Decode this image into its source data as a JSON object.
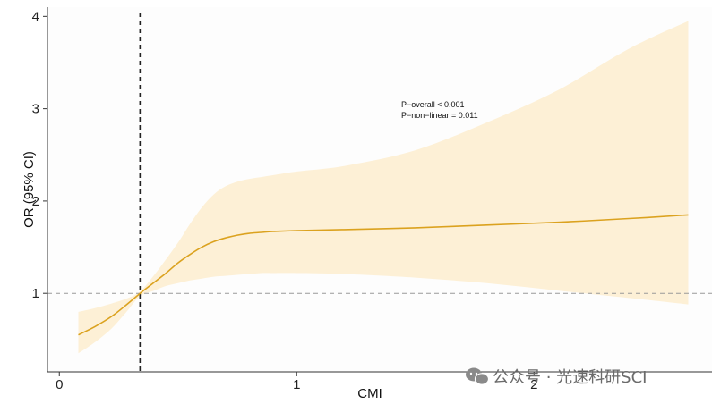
{
  "chart_data": {
    "type": "line",
    "title": "",
    "xlabel": "CMI",
    "ylabel": "OR (95% CI)",
    "xlim": [
      -0.05,
      2.75
    ],
    "ylim": [
      0.15,
      4.1
    ],
    "xticks": [
      0,
      1,
      2
    ],
    "yticks": [
      1,
      2,
      3,
      4
    ],
    "reference_line_y": 1,
    "reference_line_x": 0.34,
    "series": [
      {
        "x": [
          0.08,
          0.15,
          0.22,
          0.28,
          0.34,
          0.4,
          0.45,
          0.5,
          0.55,
          0.6,
          0.65,
          0.7,
          0.75,
          0.8,
          0.85,
          0.9,
          1.0,
          1.2,
          1.5,
          1.8,
          2.1,
          2.4,
          2.65
        ],
        "values": [
          0.55,
          0.64,
          0.75,
          0.87,
          1.0,
          1.12,
          1.22,
          1.33,
          1.42,
          1.5,
          1.56,
          1.6,
          1.63,
          1.65,
          1.66,
          1.67,
          1.68,
          1.69,
          1.71,
          1.74,
          1.77,
          1.81,
          1.85
        ],
        "lower": [
          0.35,
          0.47,
          0.62,
          0.79,
          0.97,
          1.03,
          1.08,
          1.11,
          1.14,
          1.16,
          1.18,
          1.19,
          1.2,
          1.21,
          1.22,
          1.22,
          1.22,
          1.21,
          1.17,
          1.11,
          1.03,
          0.95,
          0.88
        ],
        "upper": [
          0.8,
          0.84,
          0.89,
          0.94,
          1.02,
          1.2,
          1.37,
          1.55,
          1.75,
          1.93,
          2.07,
          2.16,
          2.21,
          2.24,
          2.26,
          2.28,
          2.32,
          2.38,
          2.55,
          2.85,
          3.2,
          3.65,
          3.95
        ]
      }
    ],
    "annotations": [
      "P−overall < 0.001",
      "P−non−linear = 0.011"
    ],
    "colors": {
      "line": "#dba21f",
      "band": "#fdf0d6",
      "panel": "#fdfdfd",
      "refline": "#999999",
      "vline": "#222222"
    },
    "grid": false
  },
  "watermark": {
    "icon": "wechat-icon",
    "text": "公众号 · 光速科研SCI"
  }
}
